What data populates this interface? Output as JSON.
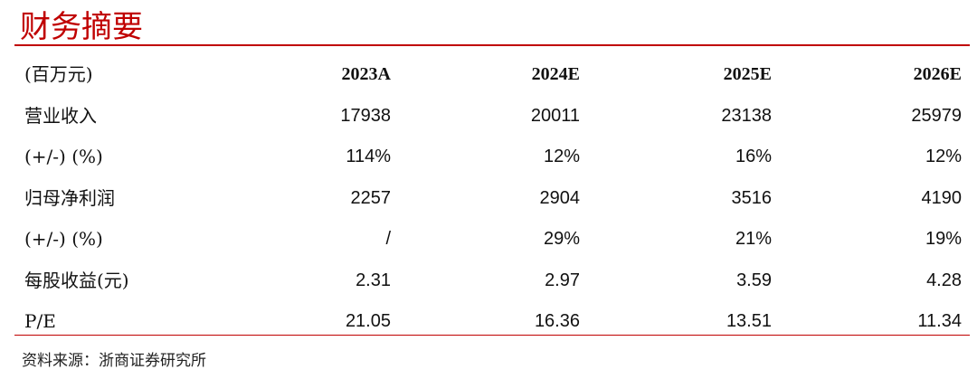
{
  "title": "财务摘要",
  "table": {
    "header": [
      "(百万元)",
      "2023A",
      "2024E",
      "2025E",
      "2026E"
    ],
    "rows": [
      [
        "营业收入",
        "17938",
        "20011",
        "23138",
        "25979"
      ],
      [
        "(+/-) (%)",
        "114%",
        "12%",
        "16%",
        "12%"
      ],
      [
        "归母净利润",
        "2257",
        "2904",
        "3516",
        "4190"
      ],
      [
        "(+/-) (%)",
        "/",
        "29%",
        "21%",
        "19%"
      ],
      [
        "每股收益(元)",
        "2.31",
        "2.97",
        "3.59",
        "4.28"
      ],
      [
        "P/E",
        "21.05",
        "16.36",
        "13.51",
        "11.34"
      ]
    ]
  },
  "source": "资料来源：浙商证券研究所"
}
